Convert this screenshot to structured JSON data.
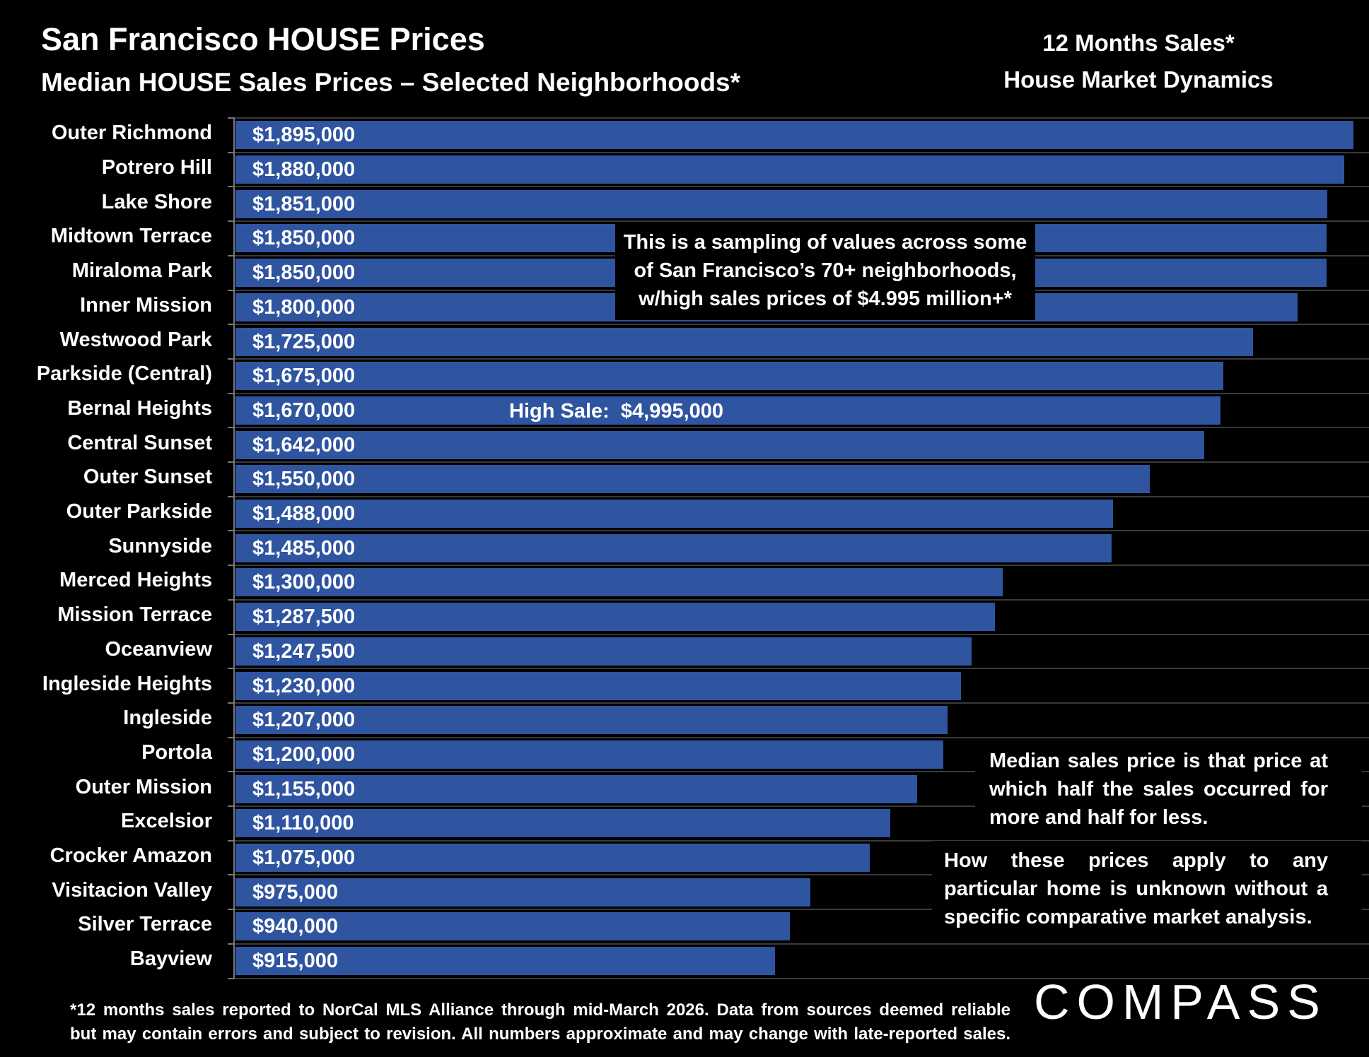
{
  "header": {
    "title": "San Francisco HOUSE Prices",
    "subtitle": "Median HOUSE Sales Prices – Selected Neighborhoods*",
    "right_line1": "12 Months Sales*",
    "right_line2": "House Market Dynamics"
  },
  "chart_data": {
    "type": "bar",
    "orientation": "horizontal",
    "title": "Median HOUSE Sales Prices – Selected Neighborhoods*",
    "xlabel": "",
    "ylabel": "",
    "xlim": [
      0,
      1895000
    ],
    "grid": true,
    "categories": [
      "Outer Richmond",
      "Potrero Hill",
      "Lake Shore",
      "Midtown Terrace",
      "Miraloma Park",
      "Inner Mission",
      "Westwood Park",
      "Parkside (Central)",
      "Bernal Heights",
      "Central Sunset",
      "Outer Sunset",
      "Outer Parkside",
      "Sunnyside",
      "Merced Heights",
      "Mission Terrace",
      "Oceanview",
      "Ingleside Heights",
      "Ingleside",
      "Portola",
      "Outer Mission",
      "Excelsior",
      "Crocker Amazon",
      "Visitacion Valley",
      "Silver Terrace",
      "Bayview"
    ],
    "values": [
      1895000,
      1880000,
      1851000,
      1850000,
      1850000,
      1800000,
      1725000,
      1675000,
      1670000,
      1642000,
      1550000,
      1488000,
      1485000,
      1300000,
      1287500,
      1247500,
      1230000,
      1207000,
      1200000,
      1155000,
      1110000,
      1075000,
      975000,
      940000,
      915000
    ],
    "labels": [
      "$1,895,000",
      "$1,880,000",
      "$1,851,000",
      "$1,850,000",
      "$1,850,000",
      "$1,800,000",
      "$1,725,000",
      "$1,675,000",
      "$1,670,000",
      "$1,642,000",
      "$1,550,000",
      "$1,488,000",
      "$1,485,000",
      "$1,300,000",
      "$1,287,500",
      "$1,247,500",
      "$1,230,000",
      "$1,207,000",
      "$1,200,000",
      "$1,155,000",
      "$1,110,000",
      "$1,075,000",
      "$975,000",
      "$940,000",
      "$915,000"
    ],
    "bar_color": "#2f54a0",
    "annotations": {
      "high_sale": "High Sale:  $4,995,000"
    }
  },
  "callout": {
    "line1": "This is a sampling of values across some",
    "line2": "of San Francisco’s 70+ neighborhoods,",
    "line3": "w/high sales prices of $4.995 million+*"
  },
  "notes": {
    "median": "Median sales price is that price at which half the sales occurred for more and half for less.",
    "how_apply": "How these prices apply to any particular home is unknown without a specific comparative market analysis."
  },
  "footnote": {
    "line1": "*12 months sales reported to NorCal MLS Alliance through mid-March 2026. Data from sources deemed reliable",
    "line2": "but may contain errors and subject to revision. All numbers approximate and may change with late-reported sales."
  },
  "logo": "COMPASS"
}
